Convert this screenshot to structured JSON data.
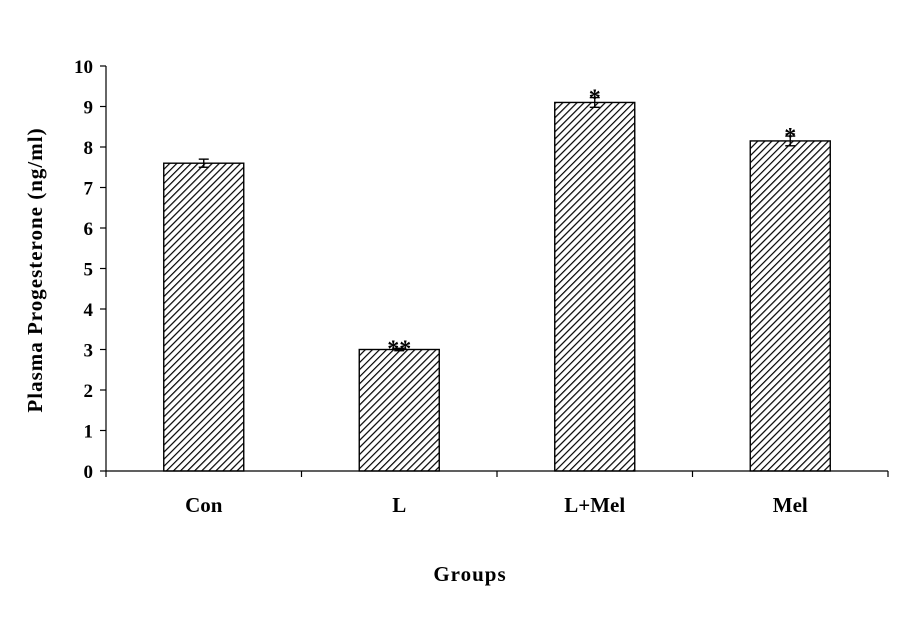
{
  "chart_data": {
    "type": "bar",
    "xlabel": "Groups",
    "ylabel": "Plasma Progesterone (ng/ml)",
    "categories": [
      "Con",
      "L",
      "L+Mel",
      "Mel"
    ],
    "values": [
      7.6,
      3.0,
      9.1,
      8.15
    ],
    "errors": [
      0.1,
      0.03,
      0.12,
      0.12
    ],
    "annotations": [
      "",
      "**",
      "*",
      "*"
    ],
    "ylim": [
      0,
      10
    ],
    "yticks": [
      "0",
      "1",
      "2",
      "3",
      "4",
      "5",
      "6",
      "7",
      "8",
      "9",
      "10"
    ],
    "grid": false,
    "legend": "none",
    "bar_fill": "diagonal-hatch",
    "colors": {
      "bar_stroke": "#000000",
      "hatch": "#000000",
      "background": "#ffffff"
    }
  }
}
